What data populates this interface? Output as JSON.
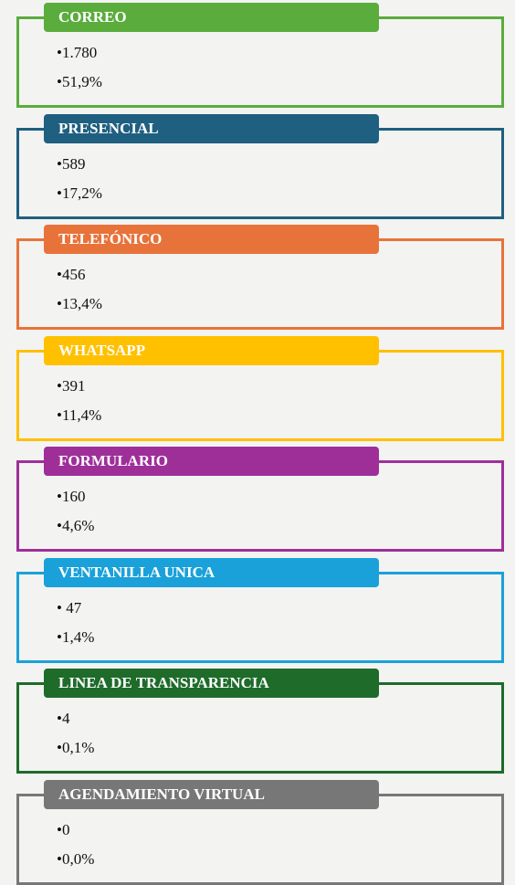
{
  "items": [
    {
      "title": "CORREO",
      "color": "#5aac3c",
      "lines": [
        "•1.780",
        "•51,9%"
      ]
    },
    {
      "title": "PRESENCIAL",
      "color": "#1f5f80",
      "lines": [
        "•589",
        "•17,2%"
      ]
    },
    {
      "title": "TELEFÓNICO",
      "color": "#e8733a",
      "lines": [
        "•456",
        "•13,4%"
      ]
    },
    {
      "title": "WHATSAPP",
      "color": "#ffc000",
      "lines": [
        "•391",
        "•11,4%"
      ]
    },
    {
      "title": "FORMULARIO",
      "color": "#9e2f99",
      "lines": [
        "•160",
        "•4,6%"
      ]
    },
    {
      "title": "VENTANILLA UNICA",
      "color": "#1aa1d9",
      "lines": [
        "• 47",
        "•1,4%"
      ]
    },
    {
      "title": "LINEA DE TRANSPARENCIA",
      "color": "#1e6b2a",
      "lines": [
        "•4",
        "•0,1%"
      ]
    },
    {
      "title": "AGENDAMIENTO VIRTUAL",
      "color": "#777777",
      "lines": [
        "•0",
        "•0,0%"
      ]
    }
  ]
}
